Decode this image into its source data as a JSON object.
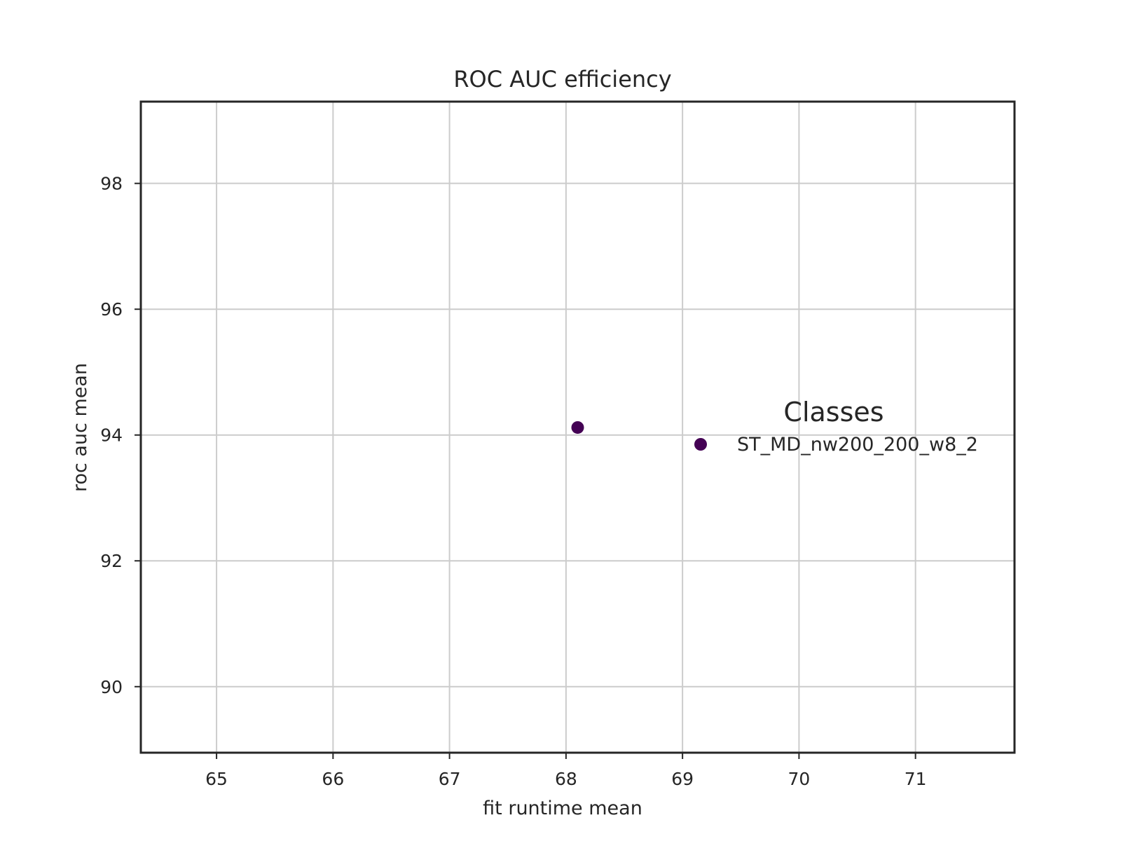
{
  "chart_data": {
    "type": "scatter",
    "title": "ROC AUC efficiency",
    "xlabel": "fit runtime mean",
    "ylabel": "roc auc mean",
    "xlim": [
      64.35,
      71.85
    ],
    "ylim": [
      88.95,
      99.3
    ],
    "xticks": [
      65,
      66,
      67,
      68,
      69,
      70,
      71
    ],
    "yticks": [
      90,
      92,
      94,
      96,
      98
    ],
    "grid": true,
    "legend": {
      "title": "Classes",
      "placement": "right",
      "entries": [
        {
          "label": "ST_MD_nw200_200_w8_2",
          "color": "#440154"
        }
      ]
    },
    "series": [
      {
        "name": "ST_MD_nw200_200_w8_2",
        "color": "#440154",
        "points": [
          {
            "x": 68.1,
            "y": 94.12
          }
        ]
      }
    ]
  }
}
